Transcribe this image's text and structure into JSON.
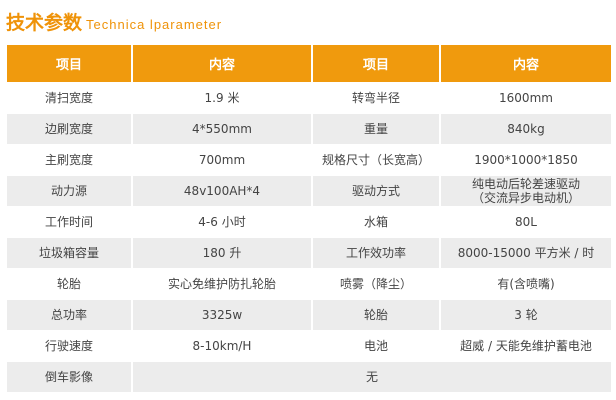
{
  "title": {
    "cn": "技术参数",
    "en": "Technica lparameter"
  },
  "headers": [
    "项目",
    "内容",
    "项目",
    "内容"
  ],
  "rows": [
    [
      "清扫宽度",
      "1.9 米",
      "转弯半径",
      "1600mm"
    ],
    [
      "边刷宽度",
      "4*550mm",
      "重量",
      "840kg"
    ],
    [
      "主刷宽度",
      "700mm",
      "规格尺寸（长宽高）",
      "1900*1000*1850"
    ],
    [
      "动力源",
      "48v100AH*4",
      "驱动方式",
      "纯电动后轮差速驱动\n（交流异步电动机）"
    ],
    [
      "工作时间",
      "4-6 小时",
      "水箱",
      "80L"
    ],
    [
      "垃圾箱容量",
      "180 升",
      "工作效功率",
      "8000-15000 平方米 / 时"
    ],
    [
      "轮胎",
      "实心免维护防扎轮胎",
      "喷雾（降尘）",
      "有(含喷嘴)"
    ],
    [
      "总功率",
      "3325w",
      "轮胎",
      "3 轮"
    ],
    [
      "行驶速度",
      "8-10km/H",
      "电池",
      "超威 / 天能免维护蓄电池"
    ]
  ],
  "last_row": {
    "label": "倒车影像",
    "value": "无"
  }
}
